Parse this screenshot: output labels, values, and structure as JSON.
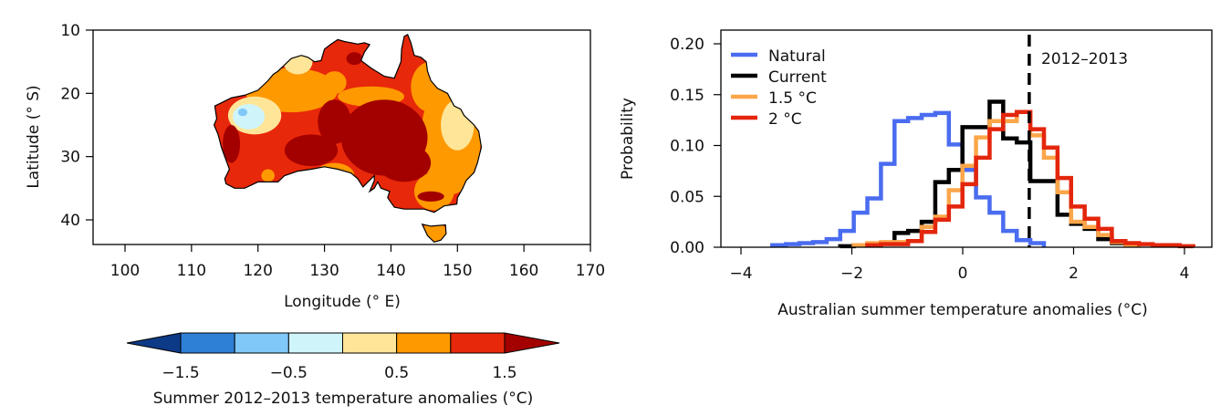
{
  "chart_data": [
    {
      "type": "heatmap",
      "subtype": "map",
      "title": "",
      "xlabel": "Longitude (° E)",
      "ylabel": "Latitude (° S)",
      "xlim": [
        95,
        170
      ],
      "ylim": [
        10,
        44
      ],
      "xticks": [
        "100",
        "110",
        "120",
        "130",
        "140",
        "150",
        "160",
        "170"
      ],
      "yticks": [
        "10",
        "20",
        "30",
        "40"
      ],
      "colorbar": {
        "label": "Summer 2012–2013 temperature anomalies (°C)",
        "boundaries": [
          -1.5,
          -1.0,
          -0.5,
          0,
          0.5,
          1.0,
          1.5
        ],
        "tick_labels": [
          "−1.5",
          "−0.5",
          "0.5",
          "1.5"
        ],
        "tick_values": [
          -1.5,
          -0.5,
          0.5,
          1.5
        ],
        "colors": [
          "#0d3a86",
          "#2e7fd6",
          "#7fc8f8",
          "#cff5fb",
          "#ffe598",
          "#ff9900",
          "#e8280a",
          "#a30000"
        ]
      }
    },
    {
      "type": "line",
      "subtype": "step-histogram",
      "xlabel": "Australian summer temperature anomalies (°C)",
      "ylabel": "Probability",
      "xlim": [
        -4.36,
        4.49
      ],
      "ylim": [
        0,
        0.21
      ],
      "xticks": [
        -4,
        -2,
        0,
        2,
        4
      ],
      "xtick_labels": [
        "−4",
        "−2",
        "0",
        "2",
        "4"
      ],
      "yticks": [
        0,
        0.05,
        0.1,
        0.15,
        0.2
      ],
      "ytick_labels": [
        "0.00",
        "0.05",
        "0.10",
        "0.15",
        "0.20"
      ],
      "bin_start": -4.17,
      "bin_width": 0.245,
      "legend_position": "top-left",
      "series": [
        {
          "name": "Natural",
          "color": "#4a6cf0",
          "values": [
            0,
            0,
            0,
            0.002,
            0.003,
            0.004,
            0.005,
            0.008,
            0.016,
            0.034,
            0.048,
            0.082,
            0.124,
            0.127,
            0.13,
            0.132,
            0.101,
            0.076,
            0.049,
            0.034,
            0.016,
            0.007,
            0.004,
            0,
            0,
            0,
            0,
            0,
            0,
            0,
            0,
            0,
            0,
            0,
            0,
            0
          ]
        },
        {
          "name": "Current",
          "color": "#000000",
          "values": [
            0,
            0,
            0,
            0,
            0,
            0,
            0,
            0,
            0.001,
            0.002,
            0.003,
            0.004,
            0.014,
            0.016,
            0.025,
            0.064,
            0.076,
            0.118,
            0.118,
            0.143,
            0.107,
            0.103,
            0.065,
            0.065,
            0.032,
            0.023,
            0.018,
            0.008,
            0.004,
            0,
            0,
            0,
            0,
            0,
            0,
            0
          ]
        },
        {
          "name": "1.5 °C",
          "color": "#fca64a",
          "values": [
            0,
            0,
            0,
            0,
            0,
            0,
            0,
            0,
            0,
            0.002,
            0.004,
            0.005,
            0.005,
            0.006,
            0.02,
            0.03,
            0.056,
            0.08,
            0.108,
            0.124,
            0.124,
            0.133,
            0.11,
            0.088,
            0.054,
            0.025,
            0.02,
            0.012,
            0.005,
            0.002,
            0,
            0,
            0,
            0,
            0,
            0
          ]
        },
        {
          "name": "2 °C",
          "color": "#e3260c",
          "values": [
            0,
            0,
            0,
            0,
            0,
            0,
            0,
            0,
            0,
            0,
            0.002,
            0.003,
            0.003,
            0.006,
            0.015,
            0.027,
            0.04,
            0.062,
            0.088,
            0.116,
            0.13,
            0.133,
            0.116,
            0.098,
            0.068,
            0.04,
            0.028,
            0.018,
            0.006,
            0.004,
            0.003,
            0.002,
            0.002,
            0.001,
            0,
            0
          ]
        }
      ],
      "annotation": {
        "label": "2012–2013",
        "x": 1.2,
        "style": "dashed"
      }
    }
  ]
}
